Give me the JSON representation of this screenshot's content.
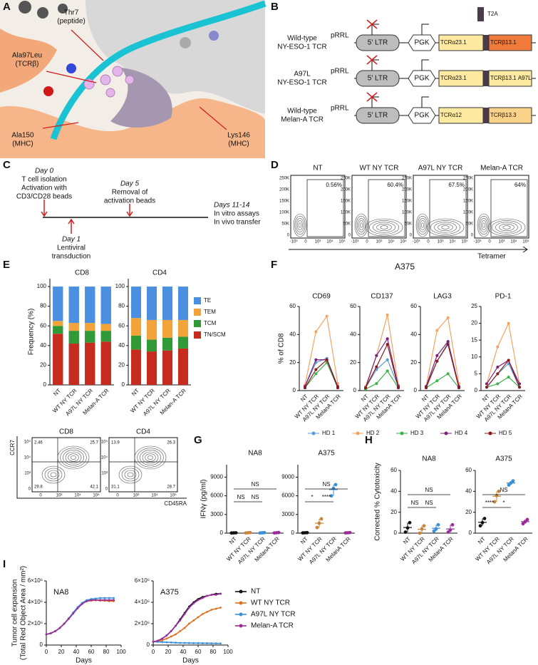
{
  "panel_labels": [
    "A",
    "B",
    "C",
    "D",
    "E",
    "F",
    "G",
    "H",
    "I"
  ],
  "panel_a": {
    "labels": [
      [
        "Thr7",
        "(peptide)"
      ],
      [
        "Ala97Leu",
        "(TCRβ)"
      ],
      [
        "Ala150",
        "(MHC)"
      ],
      [
        "Lys146",
        "(MHC)"
      ]
    ]
  },
  "panel_b": {
    "t2a": "T2A",
    "rows": [
      {
        "name": [
          "Wild-type",
          "NY-ESO-1 TCR"
        ],
        "vector": "pRRL",
        "ltr": "5' LTR",
        "promoter": "PGK",
        "alpha": "TCRα23.1",
        "beta": "TCRβ13.1"
      },
      {
        "name": [
          "A97L",
          "NY-ESO-1 TCR"
        ],
        "vector": "pRRL",
        "ltr": "5' LTR",
        "promoter": "PGK",
        "alpha": "TCRα23.1",
        "beta": "TCRβ13.1 A97L"
      },
      {
        "name": [
          "Wild-type",
          "Melan-A TCR"
        ],
        "vector": "pRRL",
        "ltr": "5' LTR",
        "promoter": "PGK",
        "alpha": "TCRα12",
        "beta": "TCRβ13.3"
      }
    ]
  },
  "panel_c": {
    "events": [
      {
        "day": "Day 0",
        "text": [
          "T cell isolation",
          "Activation with",
          "CD3/CD28 beads"
        ]
      },
      {
        "day": "Day 5",
        "text": [
          "Removal of",
          "activation beads"
        ]
      },
      {
        "day": "Day 1",
        "text": [
          "Lentiviral",
          "transduction"
        ]
      },
      {
        "day": "Days 11-14",
        "text": [
          "In vitro assays",
          "In vivo transfer"
        ]
      }
    ]
  },
  "panel_d": {
    "plots": [
      {
        "title": "NT",
        "gate": "0.56%"
      },
      {
        "title": "WT NY TCR",
        "gate": "60.4%"
      },
      {
        "title": "A97L NY TCR",
        "gate": "67.5%"
      },
      {
        "title": "Melan-A TCR",
        "gate": "64%"
      }
    ],
    "yticks": [
      "250K",
      "200K",
      "150K",
      "100K",
      "50K",
      "0"
    ],
    "xticks": [
      "-10³",
      "0",
      "10³",
      "10⁴",
      "10⁵"
    ],
    "xlabel": "Tetramer"
  },
  "panel_e_flow": {
    "plots": [
      {
        "title": "CD8",
        "quadrants": [
          "2.46",
          "25.7",
          "29.8",
          "42.1"
        ]
      },
      {
        "title": "CD4",
        "quadrants": [
          "13.9",
          "26.3",
          "31.1",
          "28.7"
        ]
      }
    ],
    "ylabel": "CCR7",
    "xlabel": "CD45RA",
    "yticks": [
      "10⁵",
      "10⁴",
      "10³",
      "0"
    ],
    "xticks": [
      "0",
      "10³",
      "10⁴",
      "10⁵"
    ]
  },
  "chart_data": [
    {
      "type": "bar",
      "stacked": true,
      "title": "CD8",
      "ylabel": "Frequency (%)",
      "categories": [
        "NT",
        "WT NY TCR",
        "A97L NY TCR",
        "Melan-A TCR"
      ],
      "series": [
        {
          "color": "#c62b1f",
          "values": [
            52,
            42,
            43,
            44
          ]
        },
        {
          "color": "#2f9a37",
          "values": [
            8,
            13,
            12,
            11
          ]
        },
        {
          "color": "#f2a33a",
          "values": [
            5,
            8,
            8,
            7
          ]
        },
        {
          "color": "#4b8fe0",
          "values": [
            35,
            37,
            37,
            38
          ]
        }
      ],
      "ylim": [
        0,
        108
      ],
      "yticks": [
        0,
        20,
        40,
        60,
        80,
        100
      ]
    },
    {
      "type": "bar",
      "stacked": true,
      "title": "CD4",
      "categories": [
        "NT",
        "WT NY TCR",
        "A97L NY TCR",
        "Melan-A TCR"
      ],
      "series": [
        {
          "name": "TN/SCM",
          "color": "#c62b1f",
          "values": [
            36,
            34,
            35,
            37
          ]
        },
        {
          "name": "TCM",
          "color": "#2f9a37",
          "values": [
            14,
            12,
            13,
            12
          ]
        },
        {
          "name": "TEM",
          "color": "#f2a33a",
          "values": [
            18,
            20,
            18,
            17
          ]
        },
        {
          "name": "TE",
          "color": "#4b8fe0",
          "values": [
            32,
            34,
            34,
            34
          ]
        }
      ],
      "ylim": [
        0,
        108
      ],
      "yticks": [
        0,
        20,
        40,
        60,
        80,
        100
      ]
    },
    {
      "type": "line",
      "supertitle": "A375",
      "title": "CD69",
      "ylabel": "% of CD8",
      "categories": [
        "NT",
        "WT NY TCR",
        "A97L NY TCR",
        "MelanA TCR"
      ],
      "series": [
        {
          "name": "HD 1",
          "color": "#5b9bd5",
          "values": [
            3,
            20,
            23,
            3
          ]
        },
        {
          "name": "HD 2",
          "color": "#f4a460",
          "values": [
            4,
            42,
            53,
            5
          ]
        },
        {
          "name": "HD 3",
          "color": "#3cb34a",
          "values": [
            2,
            12,
            20,
            2
          ]
        },
        {
          "name": "HD 4",
          "color": "#7b1f7b",
          "values": [
            3,
            22,
            22,
            3
          ]
        },
        {
          "name": "HD 5",
          "color": "#8b1a1a",
          "values": [
            2,
            15,
            22,
            2
          ]
        }
      ],
      "ylim": [
        0,
        60
      ],
      "yticks": [
        0,
        20,
        40,
        60
      ]
    },
    {
      "type": "line",
      "title": "CD137",
      "categories": [
        "NT",
        "WT NY TCR",
        "A97L NY TCR",
        "MelanA TCR"
      ],
      "series": [
        {
          "color": "#5b9bd5",
          "values": [
            2,
            15,
            22,
            3
          ]
        },
        {
          "color": "#f4a460",
          "values": [
            3,
            25,
            54,
            4
          ]
        },
        {
          "color": "#3cb34a",
          "values": [
            1,
            5,
            14,
            2
          ]
        },
        {
          "color": "#7b1f7b",
          "values": [
            2,
            25,
            37,
            3
          ]
        },
        {
          "color": "#8b1a1a",
          "values": [
            2,
            17,
            33,
            2
          ]
        }
      ],
      "ylim": [
        0,
        60
      ],
      "yticks": [
        0,
        20,
        40,
        60
      ]
    },
    {
      "type": "line",
      "title": "LAG3",
      "categories": [
        "NT",
        "WT NY TCR",
        "A97L NY TCR",
        "MelanA TCR"
      ],
      "series": [
        {
          "color": "#5b9bd5",
          "values": [
            3,
            21,
            34,
            3
          ]
        },
        {
          "color": "#f4a460",
          "values": [
            3,
            43,
            52,
            5
          ]
        },
        {
          "color": "#3cb34a",
          "values": [
            2,
            7,
            12,
            2
          ]
        },
        {
          "color": "#7b1f7b",
          "values": [
            3,
            25,
            35,
            3
          ]
        },
        {
          "color": "#8b1a1a",
          "values": [
            2,
            21,
            33,
            2
          ]
        }
      ],
      "ylim": [
        0,
        60
      ],
      "yticks": [
        0,
        20,
        40,
        60
      ]
    },
    {
      "type": "line",
      "title": "PD-1",
      "categories": [
        "NT",
        "WT NY TCR",
        "A97L NY TCR",
        "MelanA TCR"
      ],
      "series": [
        {
          "color": "#5b9bd5",
          "values": [
            1,
            5,
            8,
            1
          ]
        },
        {
          "color": "#f4a460",
          "values": [
            2,
            13,
            20,
            2
          ]
        },
        {
          "color": "#3cb34a",
          "values": [
            1,
            2,
            4,
            1
          ]
        },
        {
          "color": "#7b1f7b",
          "values": [
            2,
            7,
            9,
            2
          ]
        },
        {
          "color": "#8b1a1a",
          "values": [
            1,
            5,
            9,
            1
          ]
        }
      ],
      "ylim": [
        0,
        25
      ],
      "yticks": [
        0,
        5,
        10,
        15,
        20,
        25
      ]
    },
    {
      "type": "strip",
      "title": "NA8",
      "ylabel": "IFNγ (pg/ml)",
      "categories": [
        "NT",
        "WT NY TCR",
        "A97L NY TCR",
        "MelanA TCR"
      ],
      "colors": [
        "#111111",
        "#c8843a",
        "#3a8fd8",
        "#9b2d9b"
      ],
      "points": [
        [
          20,
          40,
          60
        ],
        [
          30,
          60,
          90
        ],
        [
          20,
          50,
          80
        ],
        [
          30,
          60,
          100
        ]
      ],
      "annotations": [
        "NS",
        "NS",
        "NS"
      ],
      "ylim": [
        0,
        11000
      ],
      "yticks": [
        0,
        3000,
        6000,
        9000
      ]
    },
    {
      "type": "strip",
      "title": "A375",
      "categories": [
        "NT",
        "WT NY TCR",
        "A97L NY TCR",
        "MelanA TCR"
      ],
      "colors": [
        "#111111",
        "#c8843a",
        "#3a8fd8",
        "#9b2d9b"
      ],
      "points": [
        [
          40,
          60,
          80
        ],
        [
          900,
          1600,
          2300
        ],
        [
          6000,
          7200,
          7800
        ],
        [
          40,
          60,
          90
        ]
      ],
      "annotations": [
        "*",
        "****",
        "NS"
      ],
      "ylim": [
        0,
        11000
      ],
      "yticks": [
        0,
        3000,
        6000,
        9000
      ]
    },
    {
      "type": "strip",
      "title": "NA8",
      "ylabel": "Corrected % Cytotoxicity",
      "categories": [
        "NT",
        "WT NY TCR",
        "A97L NY TCR",
        "MelanA TCR"
      ],
      "colors": [
        "#111111",
        "#c8843a",
        "#3a8fd8",
        "#9b2d9b"
      ],
      "points": [
        [
          1,
          5,
          10
        ],
        [
          0,
          4,
          7
        ],
        [
          2,
          4,
          8
        ],
        [
          1,
          3,
          8
        ]
      ],
      "annotations": [
        "NS",
        "NS",
        "NS"
      ],
      "ylim": [
        0,
        60
      ],
      "yticks": [
        0,
        20,
        40,
        60
      ]
    },
    {
      "type": "strip",
      "title": "A375",
      "categories": [
        "NT",
        "WT NY TCR",
        "A97L NY TCR",
        "MelanA TCR"
      ],
      "colors": [
        "#111111",
        "#c8843a",
        "#3a8fd8",
        "#9b2d9b"
      ],
      "points": [
        [
          7,
          10,
          14
        ],
        [
          30,
          36,
          40
        ],
        [
          46,
          48,
          50
        ],
        [
          9,
          11,
          13
        ]
      ],
      "annotations": [
        "****",
        "*",
        "NS"
      ],
      "ylim": [
        0,
        60
      ],
      "yticks": [
        0,
        20,
        40,
        60
      ]
    },
    {
      "type": "xline",
      "title": "NA8",
      "ylabel": [
        "Tumor cell expansion",
        "(Total Red Object Area / mm²)"
      ],
      "xlabel": "Days",
      "x": [
        0,
        6,
        12,
        18,
        24,
        30,
        36,
        42,
        48,
        54,
        60,
        66,
        72,
        78,
        84,
        90
      ],
      "series": [
        {
          "color": "#111111",
          "values": [
            1000000,
            1100000,
            1300000,
            1600000,
            2000000,
            2500000,
            3000000,
            3500000,
            3900000,
            4100000,
            4200000,
            4200000,
            4200000,
            4200000,
            4200000,
            4200000
          ]
        },
        {
          "color": "#e07020",
          "values": [
            1000000,
            1100000,
            1300000,
            1600000,
            2000000,
            2500000,
            3000000,
            3500000,
            3900000,
            4100000,
            4150000,
            4200000,
            4150000,
            4150000,
            4100000,
            4100000
          ]
        },
        {
          "color": "#3a8fd8",
          "values": [
            1000000,
            1100000,
            1300000,
            1600000,
            2000000,
            2500000,
            3050000,
            3550000,
            3950000,
            4200000,
            4300000,
            4350000,
            4400000,
            4400000,
            4400000,
            4400000
          ]
        },
        {
          "color": "#9b2d9b",
          "values": [
            1000000,
            1100000,
            1300000,
            1600000,
            2000000,
            2450000,
            2950000,
            3450000,
            3850000,
            4100000,
            4200000,
            4200000,
            4200000,
            4200000,
            4200000,
            4200000
          ]
        }
      ],
      "xlim": [
        0,
        100
      ],
      "xticks": [
        0,
        20,
        40,
        60,
        80,
        100
      ],
      "ylim": [
        0,
        6000000
      ],
      "yticks": [
        0,
        {
          "value": 2000000,
          "label": "2×10⁶"
        },
        {
          "value": 4000000,
          "label": "4×10⁶"
        },
        {
          "value": 6000000,
          "label": "6×10⁶"
        }
      ]
    },
    {
      "type": "xline",
      "title": "A375",
      "xlabel": "Days",
      "x": [
        0,
        6,
        12,
        18,
        24,
        30,
        36,
        42,
        48,
        54,
        60,
        66,
        72,
        78,
        84,
        90
      ],
      "series": [
        {
          "name": "NT",
          "color": "#111111",
          "values": [
            300000,
            400000,
            600000,
            900000,
            1300000,
            1800000,
            2400000,
            3000000,
            3600000,
            4000000,
            4300000,
            4500000,
            4600000,
            4700000,
            4800000,
            4800000
          ]
        },
        {
          "name": "WT NY TCR",
          "color": "#e07020",
          "values": [
            300000,
            350000,
            450000,
            600000,
            800000,
            1000000,
            1300000,
            1600000,
            2000000,
            2300000,
            2600000,
            2900000,
            3100000,
            3300000,
            3400000,
            3500000
          ]
        },
        {
          "name": "A97L NY TCR",
          "color": "#3a8fd8",
          "values": [
            300000,
            300000,
            280000,
            260000,
            240000,
            220000,
            200000,
            200000,
            190000,
            180000,
            180000,
            170000,
            170000,
            160000,
            160000,
            150000
          ]
        },
        {
          "name": "Melan-A TCR",
          "color": "#9b2d9b",
          "values": [
            300000,
            400000,
            600000,
            900000,
            1300000,
            1800000,
            2300000,
            2900000,
            3500000,
            3900000,
            4200000,
            4400000,
            4600000,
            4700000,
            4700000,
            4800000
          ]
        }
      ],
      "xlim": [
        0,
        100
      ],
      "xticks": [
        0,
        20,
        40,
        60,
        80,
        100
      ],
      "ylim": [
        0,
        6000000
      ],
      "yticks": [
        0,
        {
          "value": 2000000,
          "label": "2×10⁶"
        },
        {
          "value": 4000000,
          "label": "4×10⁶"
        },
        {
          "value": 6000000,
          "label": "6×10⁶"
        }
      ]
    }
  ]
}
